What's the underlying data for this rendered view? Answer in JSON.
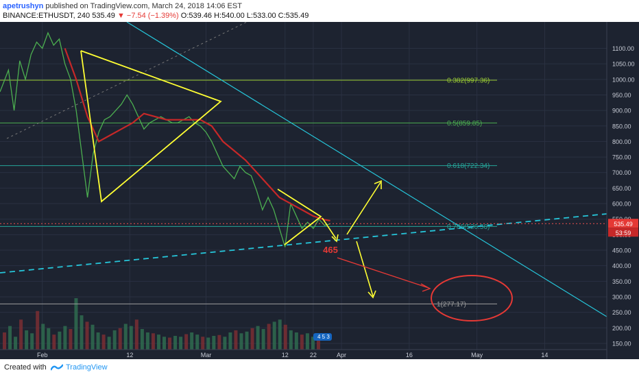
{
  "header": {
    "author": "apetrushyn",
    "published_text": "published on TradingView.com, March 24, 2018 14:06 EST",
    "symbol": "BINANCE:ETHUSDT, 240",
    "last_price": "535.49",
    "change": "−7.54 (−1.39%)",
    "ohlc": "O:539.46 H:540.00 L:533.00 C:535.49"
  },
  "footer": {
    "created_with": "Created with",
    "brand": "TradingView"
  },
  "chart_data": {
    "type": "line",
    "title": "",
    "y_axis": {
      "ticks": [
        1100,
        1050,
        1000,
        950,
        900,
        850,
        800,
        750,
        700,
        650,
        600,
        550,
        500,
        450,
        400,
        350,
        300,
        250,
        200,
        150
      ],
      "ylim": [
        130,
        1185
      ]
    },
    "x_axis": {
      "tick_labels": [
        "Feb",
        "12",
        "Mar",
        "12",
        "22",
        "Apr",
        "16",
        "May",
        "14"
      ],
      "tick_x": [
        -10,
        21,
        48,
        76,
        86,
        96,
        120,
        144,
        168
      ],
      "xlim": [
        -25,
        190
      ]
    },
    "price_label": "535.49",
    "countdown_label": "53:59",
    "colors": {
      "background": "#1d2330",
      "fib": "#9acd32",
      "fib_green": "#4caf50",
      "fib_teal": "#26a69a",
      "trend": "#26c6da",
      "pattern": "#ffff33",
      "annotation": "#e53935",
      "ma": "#c62828"
    },
    "fib_levels": [
      {
        "label": "0.382(997.36)",
        "value": 997.36
      },
      {
        "label": "0.5(859.85)",
        "value": 859.85
      },
      {
        "label": "0.618(722.34)",
        "value": 722.34
      },
      {
        "label": "0.786(526.56)",
        "value": 526.56
      },
      {
        "label": "1(277.17)",
        "value": 277.17
      }
    ],
    "price_series": [
      {
        "x": -25,
        "y": 960
      },
      {
        "x": -22,
        "y": 1030
      },
      {
        "x": -20,
        "y": 900
      },
      {
        "x": -18,
        "y": 1060
      },
      {
        "x": -16,
        "y": 1000
      },
      {
        "x": -14,
        "y": 1080
      },
      {
        "x": -12,
        "y": 1120
      },
      {
        "x": -10,
        "y": 1100
      },
      {
        "x": -8,
        "y": 1150
      },
      {
        "x": -6,
        "y": 1110
      },
      {
        "x": -4,
        "y": 1130
      },
      {
        "x": -2,
        "y": 1050
      },
      {
        "x": 0,
        "y": 1000
      },
      {
        "x": 2,
        "y": 900
      },
      {
        "x": 4,
        "y": 760
      },
      {
        "x": 6,
        "y": 620
      },
      {
        "x": 8,
        "y": 760
      },
      {
        "x": 10,
        "y": 830
      },
      {
        "x": 12,
        "y": 870
      },
      {
        "x": 14,
        "y": 880
      },
      {
        "x": 16,
        "y": 900
      },
      {
        "x": 18,
        "y": 920
      },
      {
        "x": 20,
        "y": 950
      },
      {
        "x": 22,
        "y": 920
      },
      {
        "x": 24,
        "y": 880
      },
      {
        "x": 26,
        "y": 840
      },
      {
        "x": 28,
        "y": 860
      },
      {
        "x": 30,
        "y": 870
      },
      {
        "x": 32,
        "y": 880
      },
      {
        "x": 34,
        "y": 870
      },
      {
        "x": 36,
        "y": 860
      },
      {
        "x": 38,
        "y": 860
      },
      {
        "x": 40,
        "y": 870
      },
      {
        "x": 42,
        "y": 880
      },
      {
        "x": 44,
        "y": 860
      },
      {
        "x": 46,
        "y": 850
      },
      {
        "x": 48,
        "y": 830
      },
      {
        "x": 50,
        "y": 800
      },
      {
        "x": 52,
        "y": 760
      },
      {
        "x": 54,
        "y": 720
      },
      {
        "x": 56,
        "y": 700
      },
      {
        "x": 58,
        "y": 680
      },
      {
        "x": 60,
        "y": 720
      },
      {
        "x": 62,
        "y": 700
      },
      {
        "x": 64,
        "y": 690
      },
      {
        "x": 66,
        "y": 640
      },
      {
        "x": 68,
        "y": 580
      },
      {
        "x": 70,
        "y": 620
      },
      {
        "x": 72,
        "y": 580
      },
      {
        "x": 74,
        "y": 520
      },
      {
        "x": 76,
        "y": 460
      },
      {
        "x": 78,
        "y": 600
      },
      {
        "x": 80,
        "y": 560
      },
      {
        "x": 82,
        "y": 520
      },
      {
        "x": 84,
        "y": 540
      },
      {
        "x": 86,
        "y": 520
      },
      {
        "x": 88,
        "y": 550
      },
      {
        "x": 90,
        "y": 530
      },
      {
        "x": 92,
        "y": 535
      }
    ],
    "ma_series": [
      {
        "x": -2,
        "y": 1100
      },
      {
        "x": 2,
        "y": 1000
      },
      {
        "x": 6,
        "y": 880
      },
      {
        "x": 10,
        "y": 800
      },
      {
        "x": 14,
        "y": 820
      },
      {
        "x": 18,
        "y": 840
      },
      {
        "x": 22,
        "y": 860
      },
      {
        "x": 26,
        "y": 890
      },
      {
        "x": 30,
        "y": 880
      },
      {
        "x": 34,
        "y": 870
      },
      {
        "x": 38,
        "y": 870
      },
      {
        "x": 42,
        "y": 870
      },
      {
        "x": 46,
        "y": 870
      },
      {
        "x": 50,
        "y": 850
      },
      {
        "x": 54,
        "y": 800
      },
      {
        "x": 58,
        "y": 770
      },
      {
        "x": 62,
        "y": 740
      },
      {
        "x": 66,
        "y": 700
      },
      {
        "x": 70,
        "y": 660
      },
      {
        "x": 74,
        "y": 620
      },
      {
        "x": 78,
        "y": 600
      },
      {
        "x": 82,
        "y": 580
      },
      {
        "x": 86,
        "y": 560
      },
      {
        "x": 90,
        "y": 548
      },
      {
        "x": 92,
        "y": 545
      }
    ],
    "volume": [
      40,
      55,
      30,
      70,
      45,
      38,
      90,
      60,
      50,
      35,
      42,
      55,
      48,
      120,
      80,
      65,
      58,
      40,
      35,
      30,
      45,
      50,
      60,
      55,
      70,
      48,
      40,
      38,
      35,
      30,
      28,
      32,
      30,
      36,
      40,
      35,
      30,
      28,
      32,
      34,
      30,
      40,
      45,
      38,
      42,
      50,
      55,
      48,
      60,
      65,
      70,
      58,
      45,
      40,
      35,
      38,
      30,
      28
    ]
  },
  "annotations": {
    "target_label": "465",
    "indicator_value": "4 5 3"
  }
}
